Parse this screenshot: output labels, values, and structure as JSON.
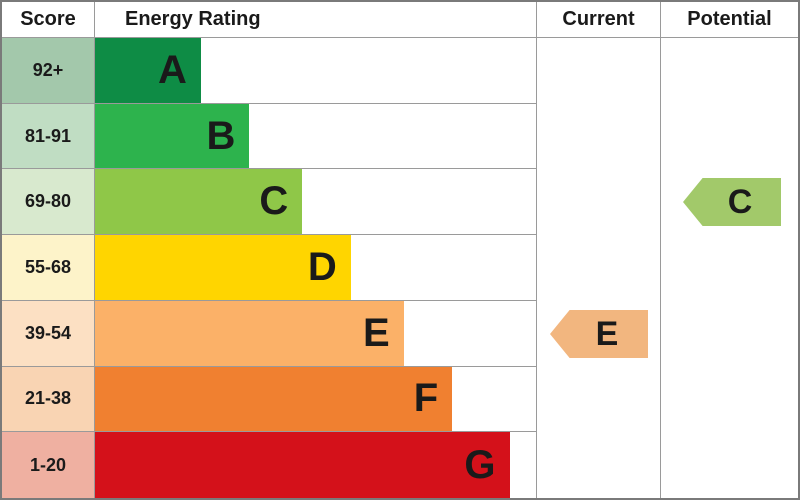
{
  "header": {
    "score": "Score",
    "energy_rating": "Energy Rating",
    "current": "Current",
    "potential": "Potential"
  },
  "bands": [
    {
      "score": "92+",
      "letter": "A",
      "color": "#0e8c45",
      "tint": "#a3c8ab",
      "bar_width_pct": 24
    },
    {
      "score": "81-91",
      "letter": "B",
      "color": "#2db34d",
      "tint": "#c0ddc3",
      "bar_width_pct": 35
    },
    {
      "score": "69-80",
      "letter": "C",
      "color": "#8fc748",
      "tint": "#d8e9ce",
      "bar_width_pct": 47
    },
    {
      "score": "55-68",
      "letter": "D",
      "color": "#ffd500",
      "tint": "#fdf3c9",
      "bar_width_pct": 58
    },
    {
      "score": "39-54",
      "letter": "E",
      "color": "#fbb168",
      "tint": "#fce0c3",
      "bar_width_pct": 70
    },
    {
      "score": "21-38",
      "letter": "F",
      "color": "#f08030",
      "tint": "#f9d4b3",
      "bar_width_pct": 81
    },
    {
      "score": "1-20",
      "letter": "G",
      "color": "#d4111a",
      "tint": "#efb0a1",
      "bar_width_pct": 94
    }
  ],
  "current": {
    "rating": "E",
    "color": "#f2b67f"
  },
  "potential": {
    "rating": "C",
    "color": "#a2c96a"
  },
  "chart_data": {
    "type": "bar",
    "title": "Energy Rating",
    "categories": [
      "A",
      "B",
      "C",
      "D",
      "E",
      "F",
      "G"
    ],
    "score_ranges": [
      "92+",
      "81-91",
      "69-80",
      "55-68",
      "39-54",
      "21-38",
      "1-20"
    ],
    "bar_width_pct": [
      24,
      35,
      47,
      58,
      70,
      81,
      94
    ],
    "band_colors": [
      "#0e8c45",
      "#2db34d",
      "#8fc748",
      "#ffd500",
      "#fbb168",
      "#f08030",
      "#d4111a"
    ],
    "columns": [
      "Score",
      "Energy Rating",
      "Current",
      "Potential"
    ],
    "current_rating": "E",
    "potential_rating": "C",
    "legend_position": "none",
    "grid": true
  }
}
